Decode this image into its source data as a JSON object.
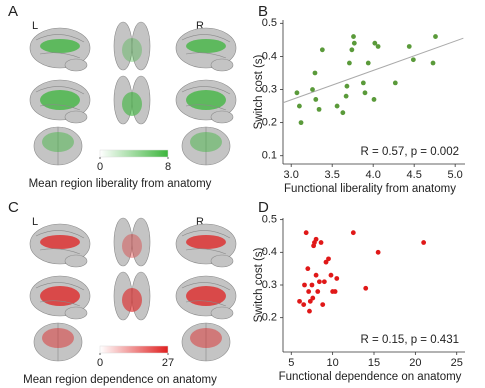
{
  "chart_data": [
    {
      "type": "brainmap",
      "letter": "A",
      "left_label": "L",
      "right_label": "R",
      "caption": "Mean region liberality from anatomy",
      "colormap": [
        "#ffffff",
        "#3cb53c"
      ],
      "clim": [
        0,
        8
      ],
      "cticks": [
        0,
        8
      ]
    },
    {
      "type": "scatter",
      "letter": "B",
      "xlabel": "Functional liberality from anatomy",
      "ylabel": "Switch cost (s)",
      "annotation": "R = 0.57, p = 0.002",
      "color": "#5a9a3a",
      "xlim": [
        2.9,
        5.12
      ],
      "ylim": [
        0.075,
        0.51
      ],
      "xticks": [
        {
          "value": 3,
          "label": "3.0"
        },
        3.5,
        {
          "value": 4,
          "label": "4.0"
        },
        4.5,
        {
          "value": 5,
          "label": "5.0"
        }
      ],
      "yticks": [
        0.1,
        0.2,
        0.3,
        0.4,
        0.5
      ],
      "x": [
        3.07,
        3.1,
        3.12,
        3.26,
        3.29,
        3.3,
        3.34,
        3.38,
        3.56,
        3.63,
        3.67,
        3.68,
        3.71,
        3.74,
        3.76,
        3.77,
        3.88,
        3.9,
        3.94,
        4.01,
        4.02,
        4.06,
        4.27,
        4.44,
        4.49,
        4.73,
        4.76
      ],
      "y": [
        0.29,
        0.25,
        0.2,
        0.3,
        0.35,
        0.27,
        0.24,
        0.42,
        0.25,
        0.23,
        0.28,
        0.31,
        0.38,
        0.42,
        0.46,
        0.44,
        0.32,
        0.29,
        0.38,
        0.27,
        0.44,
        0.43,
        0.32,
        0.43,
        0.39,
        0.38,
        0.46
      ],
      "fit": {
        "x": [
          2.9,
          5.1
        ],
        "y": [
          0.26,
          0.455
        ],
        "color": "#aaaaaa"
      }
    },
    {
      "type": "brainmap",
      "letter": "C",
      "left_label": "L",
      "right_label": "R",
      "caption": "Mean region dependence on anatomy",
      "colormap": [
        "#ffffff",
        "#e02020"
      ],
      "clim": [
        0,
        27
      ],
      "cticks": [
        0,
        27
      ]
    },
    {
      "type": "scatter",
      "letter": "D",
      "xlabel": "Functional dependence on anatomy",
      "ylabel": "Switch cost (s)",
      "annotation": "R = 0.15, p = 0.431",
      "color": "#e01818",
      "xlim": [
        4,
        26
      ],
      "ylim": [
        0.095,
        0.505
      ],
      "xticks": [
        5,
        10,
        15,
        20,
        25
      ],
      "yticks": [
        0.2,
        0.3,
        0.4,
        0.5
      ],
      "x": [
        6,
        6.5,
        6.8,
        7,
        7.2,
        7.3,
        7.5,
        7.6,
        7.7,
        7.8,
        8,
        8,
        8.2,
        8.4,
        8.6,
        8.8,
        9,
        9.2,
        9.5,
        9.8,
        10,
        10.3,
        10.5,
        12.5,
        14,
        15.5,
        21,
        6.6,
        7.1
      ],
      "y": [
        0.25,
        0.24,
        0.46,
        0.35,
        0.22,
        0.25,
        0.3,
        0.26,
        0.42,
        0.43,
        0.33,
        0.44,
        0.28,
        0.31,
        0.43,
        0.24,
        0.31,
        0.37,
        0.38,
        0.33,
        0.28,
        0.28,
        0.32,
        0.46,
        0.29,
        0.4,
        0.43,
        0.3,
        0.28
      ]
    }
  ]
}
